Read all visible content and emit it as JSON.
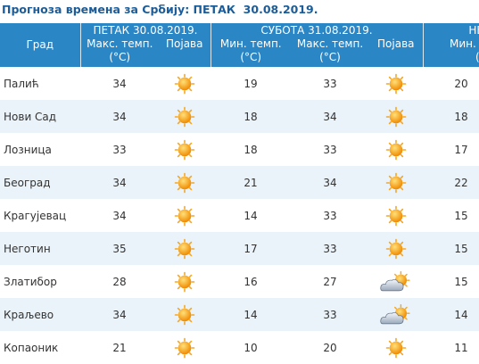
{
  "title": "Прогноза времена за Србију: ПЕТАК  30.08.2019.",
  "table": {
    "groups": [
      "ПЕТАК 30.08.2019.",
      "СУБОТА 31.08.2019.",
      "НЕ"
    ],
    "columns": [
      "Град",
      "Макс. темп.\n(°C)",
      "Појава",
      "Мин. темп.\n(°C)",
      "Макс. темп.\n(°C)",
      "Појава",
      "Мин. те\n(°C"
    ],
    "rows": [
      [
        "Палић",
        34,
        19,
        33,
        20
      ],
      [
        "Нови Сад",
        34,
        18,
        34,
        18
      ],
      [
        "Лозница",
        33,
        18,
        33,
        17
      ],
      [
        "Београд",
        34,
        21,
        34,
        22
      ],
      [
        "Крагујевац",
        34,
        14,
        33,
        15
      ],
      [
        "Неготин",
        35,
        17,
        33,
        15
      ],
      [
        "Златибор",
        28,
        16,
        27,
        15
      ],
      [
        "Краљево",
        34,
        14,
        33,
        14
      ],
      [
        "Копаоник",
        21,
        10,
        20,
        11
      ]
    ]
  }
}
